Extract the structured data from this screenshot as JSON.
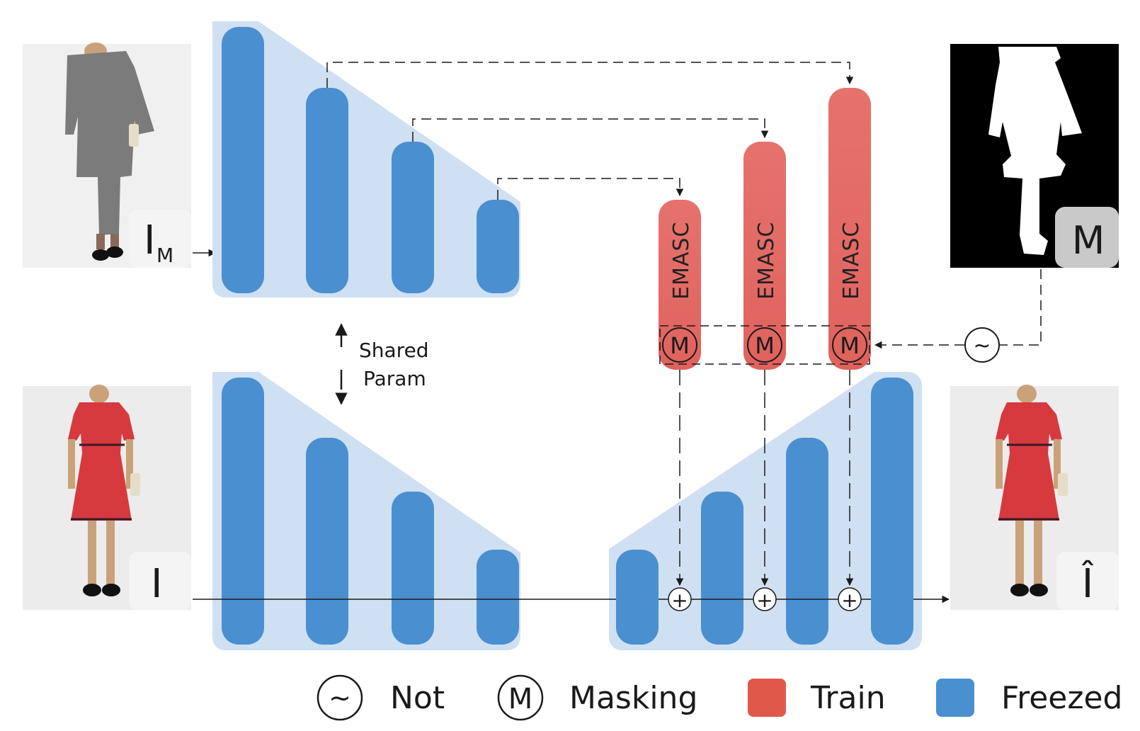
{
  "images": {
    "masked_person": {
      "corner_label": "I",
      "corner_sub": "M"
    },
    "mask": {
      "corner_label": "M"
    },
    "input_person": {
      "corner_label": "I"
    },
    "output_person": {
      "corner_label": "Î"
    }
  },
  "shared_param": {
    "line1": "Shared",
    "line2": "Param"
  },
  "emasc_blocks": [
    "EMASC",
    "EMASC",
    "EMASC"
  ],
  "symbols": {
    "masking": "M",
    "not": "~",
    "add": "+"
  },
  "legend": [
    {
      "key": "not",
      "label": "Not",
      "symbol": "~"
    },
    {
      "key": "masking",
      "label": "Masking",
      "symbol": "M"
    },
    {
      "key": "train",
      "label": "Train",
      "color": "#e0584a"
    },
    {
      "key": "freezed",
      "label": "Freezed",
      "color": "#4a90d0"
    }
  ],
  "colors": {
    "encoder_bg": "#cfe0f3",
    "freezed": "#4a90d0",
    "train_block": "#e2716c",
    "train_legend": "#e0584a",
    "masked_gray": "#7a7a7a",
    "dress_red": "#d63a3e"
  }
}
